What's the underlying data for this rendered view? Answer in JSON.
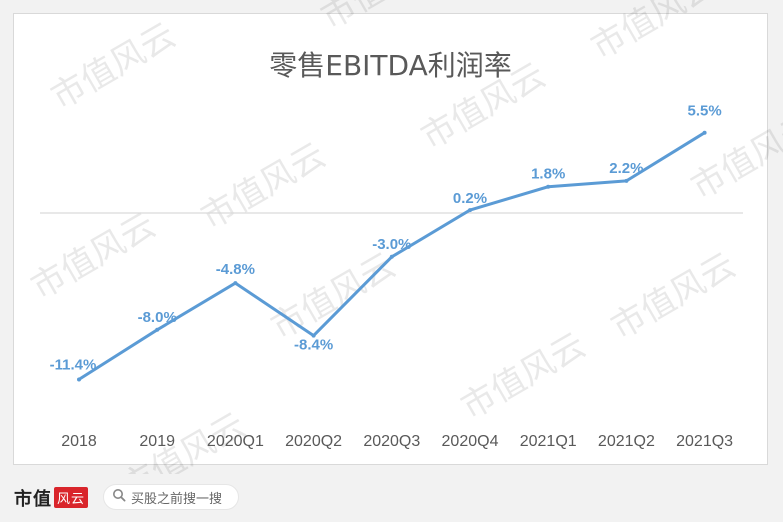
{
  "chart_data": {
    "type": "line",
    "title": "零售EBITDA利润率",
    "categories": [
      "2018",
      "2019",
      "2020Q1",
      "2020Q2",
      "2020Q3",
      "2020Q4",
      "2021Q1",
      "2021Q2",
      "2021Q3"
    ],
    "series": [
      {
        "values": [
          -11.4,
          -8.0,
          -4.8,
          -8.4,
          -3.0,
          0.2,
          1.8,
          2.2,
          5.5
        ]
      }
    ],
    "data_labels": [
      "-11.4%",
      "-8.0%",
      "-4.8%",
      "-8.4%",
      "-3.0%",
      "0.2%",
      "1.8%",
      "2.2%",
      "5.5%"
    ],
    "ylim": [
      -14,
      7
    ],
    "grid": false,
    "line_color": "#5b9bd5",
    "axis_color": "#d9d9d9"
  },
  "watermark": "市值风云",
  "footer": {
    "brand": "市值",
    "brand_stamp": "风云",
    "search_icon": "search-icon",
    "search_text": "买股之前搜一搜"
  }
}
